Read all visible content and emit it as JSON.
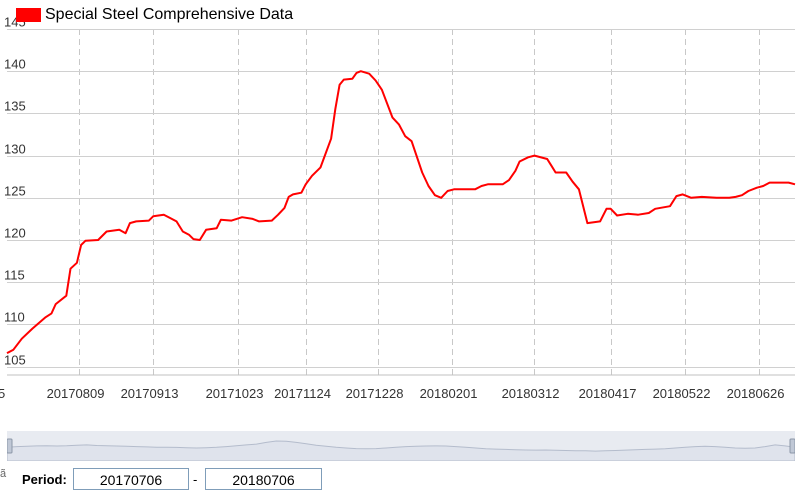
{
  "legend": {
    "label": "Special Steel Comprehensive Data",
    "color": "#ff0000"
  },
  "period": {
    "label": "Period:",
    "start": "20170706",
    "separator": "-",
    "end": "20180706"
  },
  "corner_mark": "ã",
  "chart_data": {
    "type": "line",
    "title": "",
    "xlabel": "",
    "ylabel": "",
    "ylim": [
      104,
      145
    ],
    "yticks": [
      105,
      110,
      115,
      120,
      125,
      130,
      135,
      140,
      145
    ],
    "xlim": [
      "20170706",
      "20180713"
    ],
    "xticks": [
      "20170809",
      "20170913",
      "20171023",
      "20171124",
      "20171228",
      "20180201",
      "20180312",
      "20180417",
      "20180522",
      "20180626"
    ],
    "left_edge_label": "5",
    "grid": true,
    "legend_position": "top-left",
    "series": [
      {
        "name": "Special Steel Comprehensive Data",
        "color": "#ff0000",
        "points": [
          [
            "20170706",
            106.6
          ],
          [
            "20170709",
            107.0
          ],
          [
            "20170713",
            108.3
          ],
          [
            "20170718",
            109.5
          ],
          [
            "20170724",
            110.8
          ],
          [
            "20170727",
            111.3
          ],
          [
            "20170729",
            112.4
          ],
          [
            "20170803",
            113.4
          ],
          [
            "20170805",
            116.6
          ],
          [
            "20170808",
            117.3
          ],
          [
            "20170810",
            119.4
          ],
          [
            "20170812",
            119.9
          ],
          [
            "20170818",
            120.0
          ],
          [
            "20170822",
            121.0
          ],
          [
            "20170828",
            121.2
          ],
          [
            "20170831",
            120.8
          ],
          [
            "20170902",
            122.0
          ],
          [
            "20170905",
            122.2
          ],
          [
            "20170911",
            122.3
          ],
          [
            "20170913",
            122.8
          ],
          [
            "20170918",
            123.0
          ],
          [
            "20170921",
            122.6
          ],
          [
            "20170924",
            122.2
          ],
          [
            "20170927",
            121.0
          ],
          [
            "20170930",
            120.6
          ],
          [
            "20171002",
            120.1
          ],
          [
            "20171005",
            120.0
          ],
          [
            "20171008",
            121.2
          ],
          [
            "20171013",
            121.4
          ],
          [
            "20171015",
            122.4
          ],
          [
            "20171020",
            122.3
          ],
          [
            "20171025",
            122.7
          ],
          [
            "20171030",
            122.5
          ],
          [
            "20171102",
            122.2
          ],
          [
            "20171108",
            122.3
          ],
          [
            "20171111",
            123.0
          ],
          [
            "20171114",
            123.8
          ],
          [
            "20171116",
            125.1
          ],
          [
            "20171118",
            125.4
          ],
          [
            "20171122",
            125.6
          ],
          [
            "20171124",
            126.6
          ],
          [
            "20171127",
            127.6
          ],
          [
            "20171201",
            128.6
          ],
          [
            "20171206",
            132.0
          ],
          [
            "20171208",
            135.5
          ],
          [
            "20171210",
            138.4
          ],
          [
            "20171212",
            139.0
          ],
          [
            "20171216",
            139.1
          ],
          [
            "20171218",
            139.8
          ],
          [
            "20171220",
            140.0
          ],
          [
            "20171224",
            139.7
          ],
          [
            "20171227",
            138.9
          ],
          [
            "20171230",
            137.8
          ],
          [
            "20180104",
            134.5
          ],
          [
            "20180107",
            133.7
          ],
          [
            "20180110",
            132.3
          ],
          [
            "20180113",
            131.7
          ],
          [
            "20180118",
            128.0
          ],
          [
            "20180121",
            126.4
          ],
          [
            "20180124",
            125.3
          ],
          [
            "20180127",
            125.0
          ],
          [
            "20180130",
            125.8
          ],
          [
            "20180202",
            126.0
          ],
          [
            "20180208",
            126.0
          ],
          [
            "20180212",
            126.0
          ],
          [
            "20180215",
            126.4
          ],
          [
            "20180218",
            126.6
          ],
          [
            "20180225",
            126.6
          ],
          [
            "20180228",
            127.1
          ],
          [
            "20180303",
            128.2
          ],
          [
            "20180305",
            129.3
          ],
          [
            "20180309",
            129.8
          ],
          [
            "20180312",
            130.0
          ],
          [
            "20180318",
            129.6
          ],
          [
            "20180320",
            128.8
          ],
          [
            "20180322",
            128.0
          ],
          [
            "20180327",
            128.0
          ],
          [
            "20180330",
            126.9
          ],
          [
            "20180402",
            126.0
          ],
          [
            "20180406",
            122.0
          ],
          [
            "20180412",
            122.2
          ],
          [
            "20180415",
            123.7
          ],
          [
            "20180417",
            123.7
          ],
          [
            "20180420",
            122.9
          ],
          [
            "20180425",
            123.1
          ],
          [
            "20180430",
            123.0
          ],
          [
            "20180505",
            123.2
          ],
          [
            "20180508",
            123.7
          ],
          [
            "20180515",
            124.0
          ],
          [
            "20180518",
            125.2
          ],
          [
            "20180521",
            125.4
          ],
          [
            "20180525",
            125.0
          ],
          [
            "20180530",
            125.1
          ],
          [
            "20180606",
            125.0
          ],
          [
            "20180612",
            125.0
          ],
          [
            "20180615",
            125.1
          ],
          [
            "20180618",
            125.3
          ],
          [
            "20180621",
            125.8
          ],
          [
            "20180625",
            126.2
          ],
          [
            "20180628",
            126.4
          ],
          [
            "20180701",
            126.8
          ],
          [
            "20180710",
            126.8
          ],
          [
            "20180713",
            126.6
          ]
        ]
      }
    ]
  },
  "navigator_overview": [
    0.55,
    0.6,
    0.62,
    0.65,
    0.66,
    0.64,
    0.66,
    0.7,
    0.72,
    0.68,
    0.66,
    0.64,
    0.62,
    0.6,
    0.58,
    0.56,
    0.55,
    0.54,
    0.52,
    0.5,
    0.52,
    0.55,
    0.6,
    0.66,
    0.72,
    0.78,
    0.9,
    1.0,
    0.98,
    0.9,
    0.8,
    0.7,
    0.62,
    0.55,
    0.5,
    0.46,
    0.45,
    0.46,
    0.5,
    0.55,
    0.6,
    0.62,
    0.64,
    0.65,
    0.64,
    0.6,
    0.55,
    0.5,
    0.45,
    0.42,
    0.4,
    0.38,
    0.36,
    0.35,
    0.36,
    0.34,
    0.32,
    0.3,
    0.3,
    0.28,
    0.3,
    0.32,
    0.35,
    0.38,
    0.4,
    0.42,
    0.45,
    0.5,
    0.55,
    0.6,
    0.62,
    0.6,
    0.55,
    0.5,
    0.48,
    0.5,
    0.6,
    0.72,
    0.65,
    0.55
  ],
  "colors": {
    "grid_vertical": "#c8c8c8",
    "grid_horizontal": "#d0d0d0",
    "navigator_fill": "#dfe3ec",
    "navigator_line": "#b4bccc",
    "navigator_handle": "#c0c8d6"
  }
}
